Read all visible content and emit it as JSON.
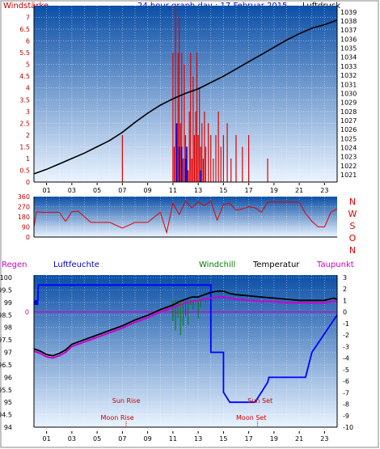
{
  "title": "24 hour graph day : 17 Februar 2015",
  "colors": {
    "wind": "#e00000",
    "wind_dir": "#e00000",
    "pressure": "#000000",
    "gust": "#0000dd",
    "temperature": "#000000",
    "humidity": "#0000ff",
    "rain": "#0000ff",
    "windchill": "#008000",
    "dewpoint": "#cc00cc",
    "moon": "#cc0000",
    "panel_top": "#0b4fa6",
    "panel_bottom": "#eaf4ff"
  },
  "hour_labels": [
    "01",
    "03",
    "05",
    "07",
    "09",
    "11",
    "13",
    "15",
    "17",
    "19",
    "21",
    "23"
  ],
  "chart_data": [
    {
      "type": "line",
      "name": "wind_pressure",
      "left_label": "Windstärke",
      "right_label": "Luftdruck",
      "left_ticks": [
        "7",
        "6.5",
        "6",
        "5.5",
        "5",
        "4.5",
        "4",
        "3.5",
        "3",
        "2.5",
        "2",
        "1.5",
        "1",
        "0.5",
        "0"
      ],
      "right_ticks": [
        "1039",
        "1038",
        "1037",
        "1036",
        "1035",
        "1034",
        "1033",
        "1032",
        "1031",
        "1030",
        "1029",
        "1028",
        "1027",
        "1026",
        "1025",
        "1024",
        "1023",
        "1022",
        "1021"
      ],
      "left_ylim": [
        0,
        7.5
      ],
      "right_ylim": [
        1020.2,
        1039.7
      ],
      "xlim": [
        0,
        24
      ],
      "pressure": {
        "x": [
          0,
          1,
          2,
          3,
          4,
          5,
          6,
          7,
          8,
          9,
          10,
          11,
          12,
          13,
          14,
          15,
          16,
          17,
          18,
          19,
          20,
          21,
          22,
          23,
          24
        ],
        "y": [
          1021.1,
          1021.6,
          1022.2,
          1022.8,
          1023.4,
          1024.1,
          1024.8,
          1025.7,
          1026.8,
          1027.8,
          1028.7,
          1029.4,
          1030.0,
          1030.5,
          1031.2,
          1031.9,
          1032.7,
          1033.5,
          1034.3,
          1035.1,
          1035.9,
          1036.6,
          1037.2,
          1037.6,
          1038.1
        ]
      },
      "wind": {
        "x": [
          7.0,
          11.0,
          11.1,
          11.2,
          11.3,
          11.4,
          11.5,
          11.6,
          11.7,
          11.8,
          11.9,
          12.0,
          12.1,
          12.2,
          12.3,
          12.4,
          12.5,
          12.6,
          12.7,
          12.8,
          12.9,
          13.0,
          13.1,
          13.2,
          13.3,
          13.4,
          13.5,
          13.6,
          13.8,
          14.0,
          14.2,
          14.4,
          14.6,
          14.8,
          15.0,
          15.3,
          15.6,
          16.0,
          16.5,
          17.0,
          18.5
        ],
        "y": [
          2.0,
          5.5,
          1.5,
          7.5,
          2.0,
          5.5,
          7.0,
          2.5,
          5.5,
          1.0,
          5.0,
          2.0,
          1.5,
          0.5,
          3.0,
          5.5,
          1.0,
          4.5,
          2.0,
          3.0,
          5.5,
          2.0,
          4.0,
          1.5,
          2.5,
          1.0,
          3.0,
          1.5,
          2.5,
          2.0,
          1.0,
          2.0,
          3.0,
          1.5,
          2.0,
          2.5,
          1.0,
          2.0,
          1.5,
          2.0,
          1.0
        ]
      },
      "gust": {
        "x": [
          11.3,
          11.5,
          11.7,
          12.0,
          12.1,
          13.2
        ],
        "y": [
          2.5,
          1.5,
          1.5,
          1.0,
          1.5,
          0.5
        ]
      }
    },
    {
      "type": "line",
      "name": "wind_direction",
      "left_ticks": [
        "360",
        "270",
        "180",
        "90",
        "0"
      ],
      "right_ticks": [
        "N",
        "W",
        "S",
        "O",
        "N"
      ],
      "ylim": [
        0,
        360
      ],
      "xlim": [
        0,
        24
      ],
      "direction": {
        "x": [
          0,
          0.2,
          0.6,
          2.0,
          2.5,
          3.0,
          3.5,
          4.5,
          5.0,
          6.0,
          7.0,
          8.0,
          8.5,
          9.0,
          10.0,
          10.5,
          11.0,
          11.5,
          12.0,
          12.5,
          13.0,
          13.5,
          14.0,
          14.5,
          15.0,
          15.5,
          16.0,
          16.5,
          17.0,
          17.5,
          18.0,
          18.5,
          19.0,
          20.0,
          21.0,
          21.5,
          22.0,
          22.5,
          23.0,
          23.5,
          24.0
        ],
        "y": [
          90,
          225,
          220,
          220,
          140,
          225,
          230,
          130,
          130,
          130,
          80,
          130,
          130,
          130,
          220,
          40,
          300,
          200,
          320,
          260,
          310,
          280,
          320,
          150,
          290,
          300,
          240,
          250,
          270,
          260,
          220,
          310,
          310,
          310,
          310,
          210,
          140,
          90,
          90,
          220,
          250
        ]
      }
    },
    {
      "type": "line",
      "name": "temperature_humidity",
      "series_labels": {
        "rain": "Regen",
        "humidity": "Luftfeuchte",
        "windchill": "Windchill",
        "temperature": "Temperatur",
        "dewpoint": "Taupunkt"
      },
      "left_ticks": [
        "100",
        "99.5",
        "99",
        "98.5",
        "98",
        "97.5",
        "97",
        "96.5",
        "96",
        "95.5",
        "95",
        "94.5",
        "94"
      ],
      "right_ticks": [
        "3",
        "2",
        "1",
        "0",
        "-1",
        "-2",
        "-3",
        "-4",
        "-5",
        "-6",
        "-7",
        "-8",
        "-9",
        "-10"
      ],
      "rain_label": "0",
      "left_ylim": [
        94,
        100.1
      ],
      "right_ylim": [
        -10,
        3.2
      ],
      "xlim": [
        0,
        24
      ],
      "temperature": {
        "x": [
          0,
          0.5,
          1,
          1.5,
          2,
          2.5,
          3,
          4,
          5,
          6,
          7,
          8,
          9,
          10,
          11,
          11.5,
          12,
          12.5,
          13,
          13.5,
          14,
          14.5,
          15,
          15.5,
          16,
          17,
          18,
          19,
          20,
          21,
          22,
          23,
          23.7,
          24
        ],
        "y": [
          -3.2,
          -3.4,
          -3.7,
          -3.8,
          -3.6,
          -3.3,
          -2.8,
          -2.4,
          -2.0,
          -1.6,
          -1.2,
          -0.7,
          -0.3,
          0.2,
          0.6,
          0.9,
          1.1,
          1.3,
          1.3,
          1.5,
          1.7,
          1.8,
          1.8,
          1.6,
          1.5,
          1.4,
          1.3,
          1.2,
          1.1,
          1.0,
          1.0,
          1.0,
          1.2,
          1.1
        ]
      },
      "dewpoint": {
        "x": [
          0,
          0.5,
          1,
          1.5,
          2,
          2.5,
          3,
          4,
          5,
          6,
          7,
          8,
          9,
          10,
          11,
          11.5,
          12,
          12.5,
          13,
          13.5,
          14,
          14.5,
          15,
          15.5,
          16,
          17,
          18,
          19,
          20,
          21,
          22,
          23,
          23.7,
          24
        ],
        "y": [
          -3.4,
          -3.6,
          -3.9,
          -4.0,
          -3.8,
          -3.5,
          -3.0,
          -2.6,
          -2.2,
          -1.8,
          -1.4,
          -0.9,
          -0.5,
          0.0,
          0.4,
          0.6,
          0.8,
          0.9,
          1.0,
          1.1,
          1.2,
          1.3,
          1.3,
          1.2,
          1.1,
          1.0,
          0.9,
          0.9,
          0.8,
          0.8,
          0.8,
          0.8,
          0.9,
          0.9
        ]
      },
      "windchill": {
        "x": [
          11.0,
          11.2,
          11.4,
          11.6,
          11.8,
          12.0,
          12.2,
          12.4,
          12.6,
          12.8,
          13.0,
          13.2,
          13.4,
          13.6
        ],
        "y": [
          -0.8,
          -1.6,
          -0.5,
          -2.0,
          -1.2,
          -0.4,
          -1.1,
          0.6,
          0.2,
          0.8,
          -0.6,
          0.4,
          1.2,
          0.8
        ]
      },
      "humidity": {
        "x": [
          0,
          0.3,
          0.35,
          13.5,
          14.0,
          14.0,
          15.0,
          15.0,
          15.5,
          17.5,
          18.0,
          18.5,
          18.6,
          21.5,
          22.0,
          24.0
        ],
        "y": [
          99,
          99,
          99.7,
          99.7,
          99.7,
          97,
          97,
          95.4,
          95,
          95,
          95.4,
          95.8,
          96,
          96,
          97,
          98.5
        ]
      },
      "rain_level": {
        "x": [
          0,
          24
        ],
        "y": [
          0,
          0
        ]
      },
      "sun_rise": {
        "label": "Sun Rise",
        "time": 7.3
      },
      "sun_set": {
        "label": "Sun Set",
        "time": 17.9
      },
      "moon_rise": {
        "label": "Moon Rise",
        "time": 6.6
      },
      "moon_set": {
        "label": "Moon Set",
        "time": 17.2
      }
    }
  ]
}
